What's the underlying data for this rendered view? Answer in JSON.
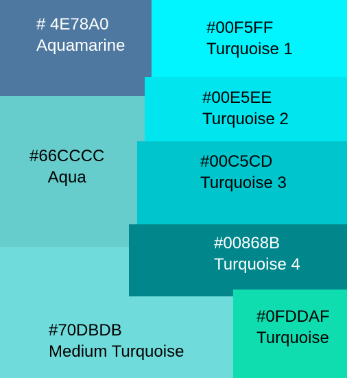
{
  "swatches": [
    {
      "id": "aquamarine",
      "hex_label": "# 4E78A0",
      "name": "Aquamarine",
      "color": "#4E78A0",
      "text_color": "#FFFFFF"
    },
    {
      "id": "turquoise1",
      "hex_label": "#00F5FF",
      "name": "Turquoise 1",
      "color": "#00F5FF",
      "text_color": "#000000"
    },
    {
      "id": "turquoise2",
      "hex_label": "#00E5EE",
      "name": "Turquoise 2",
      "color": "#00E5EE",
      "text_color": "#000000"
    },
    {
      "id": "aqua",
      "hex_label": "#66CCCC",
      "name": "Aqua",
      "color": "#66CCCC",
      "text_color": "#000000"
    },
    {
      "id": "turquoise3",
      "hex_label": "#00C5CD",
      "name": "Turquoise 3",
      "color": "#00C5CD",
      "text_color": "#000000"
    },
    {
      "id": "turquoise4",
      "hex_label": "#00868B",
      "name": "Turquoise 4",
      "color": "#00868B",
      "text_color": "#FFFFFF"
    },
    {
      "id": "medium-turquoise",
      "hex_label": "#70DBDB",
      "name": "Medium Turquoise",
      "color": "#70DBDB",
      "text_color": "#000000"
    },
    {
      "id": "turquoise",
      "hex_label": "#0FDDAF",
      "name": "Turquoise",
      "color": "#0FDDAF",
      "text_color": "#000000"
    }
  ]
}
